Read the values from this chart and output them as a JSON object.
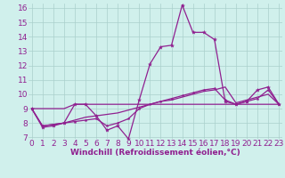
{
  "x": [
    0,
    1,
    2,
    3,
    4,
    5,
    6,
    7,
    8,
    9,
    10,
    11,
    12,
    13,
    14,
    15,
    16,
    17,
    18,
    19,
    20,
    21,
    22,
    23
  ],
  "line_main": [
    9.0,
    7.7,
    7.8,
    8.0,
    9.3,
    9.3,
    8.5,
    7.5,
    7.8,
    6.9,
    9.6,
    12.1,
    13.3,
    13.4,
    16.2,
    14.3,
    14.3,
    13.8,
    9.5,
    9.3,
    9.5,
    10.3,
    10.5,
    9.3
  ],
  "line_flat": [
    9.0,
    9.0,
    9.0,
    9.0,
    9.3,
    9.3,
    9.3,
    9.3,
    9.3,
    9.3,
    9.3,
    9.3,
    9.3,
    9.3,
    9.3,
    9.3,
    9.3,
    9.3,
    9.3,
    9.3,
    9.3,
    9.3,
    9.3,
    9.3
  ],
  "line_grad1": [
    9.0,
    7.8,
    7.9,
    8.0,
    8.1,
    8.2,
    8.3,
    7.8,
    8.0,
    8.3,
    9.0,
    9.3,
    9.5,
    9.7,
    9.9,
    10.1,
    10.3,
    10.4,
    9.6,
    9.3,
    9.5,
    9.7,
    10.3,
    9.3
  ],
  "line_grad2": [
    9.0,
    7.8,
    7.9,
    8.0,
    8.2,
    8.4,
    8.5,
    8.6,
    8.7,
    8.9,
    9.1,
    9.3,
    9.5,
    9.6,
    9.8,
    10.0,
    10.2,
    10.3,
    10.5,
    9.4,
    9.6,
    9.8,
    10.0,
    9.3
  ],
  "color": "#902090",
  "bg_color": "#d0f0ec",
  "grid_color": "#aacfcc",
  "ylim": [
    7,
    16
  ],
  "yticks": [
    7,
    8,
    9,
    10,
    11,
    12,
    13,
    14,
    15,
    16
  ],
  "xlim": [
    0,
    23
  ],
  "xlabel": "Windchill (Refroidissement éolien,°C)",
  "xlabel_fontsize": 6.5,
  "tick_fontsize": 6.5
}
